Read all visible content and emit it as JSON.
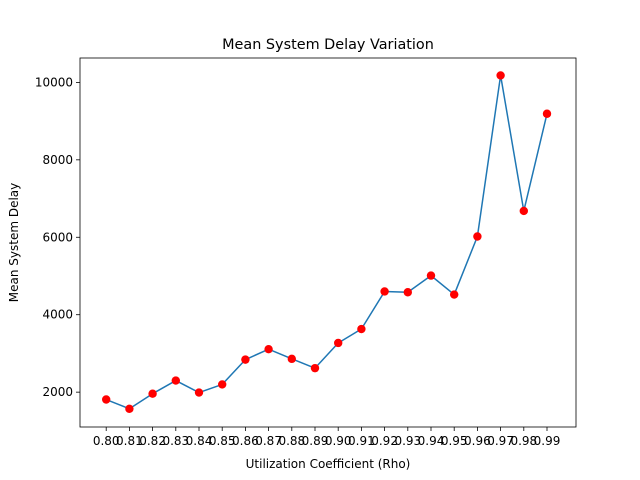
{
  "chart_data": {
    "type": "line",
    "title": "Mean System Delay Variation",
    "xlabel": "Utilization Coefficient (Rho)",
    "ylabel": "Mean System Delay",
    "categories": [
      "0.80",
      "0.81",
      "0.82",
      "0.83",
      "0.84",
      "0.85",
      "0.86",
      "0.87",
      "0.88",
      "0.89",
      "0.90",
      "0.91",
      "0.92",
      "0.93",
      "0.94",
      "0.95",
      "0.96",
      "0.97",
      "0.98",
      "0.99"
    ],
    "series": [
      {
        "values": [
          1810,
          1570,
          1960,
          2300,
          1990,
          2200,
          2840,
          3110,
          2860,
          2620,
          3270,
          3630,
          4600,
          4580,
          5010,
          4520,
          6020,
          10180,
          6680,
          9190
        ],
        "line_color": "#1f77b4",
        "marker_color": "#ff0000"
      }
    ],
    "ylim": [
      1100,
      10630
    ],
    "yticks": [
      2000,
      4000,
      6000,
      8000,
      10000
    ],
    "grid": false
  }
}
